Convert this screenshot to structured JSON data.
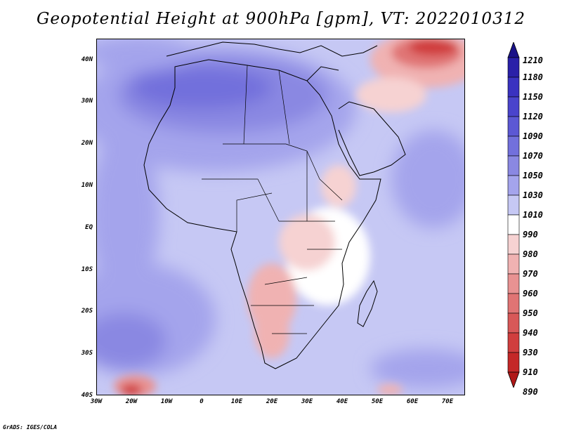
{
  "title": "Geopotential Height at 900hPa [gpm], VT: 2022010312",
  "credit": "GrADS: IGES/COLA",
  "map": {
    "lon_labels": [
      "30W",
      "20W",
      "10W",
      "0",
      "10E",
      "20E",
      "30E",
      "40E",
      "50E",
      "60E",
      "70E"
    ],
    "lat_labels": [
      "40N",
      "30N",
      "20N",
      "10N",
      "EQ",
      "10S",
      "20S",
      "30S",
      "40S"
    ],
    "lon_range": [
      -30,
      75
    ],
    "lat_range": [
      -40,
      45
    ]
  },
  "colorbar": {
    "labels": [
      "1210",
      "1180",
      "1150",
      "1120",
      "1090",
      "1070",
      "1050",
      "1030",
      "1010",
      "990",
      "980",
      "970",
      "960",
      "950",
      "940",
      "930",
      "910",
      "890"
    ],
    "colors": [
      "#1a1288",
      "#2a20a8",
      "#3a32c0",
      "#4a44cc",
      "#5c58d4",
      "#7270dc",
      "#8a88e2",
      "#a4a4ec",
      "#c6c8f4",
      "#ffffff",
      "#f6d2d2",
      "#f0b2b2",
      "#e89292",
      "#e07474",
      "#d85858",
      "#d03e3e",
      "#c42828",
      "#b01818"
    ]
  }
}
